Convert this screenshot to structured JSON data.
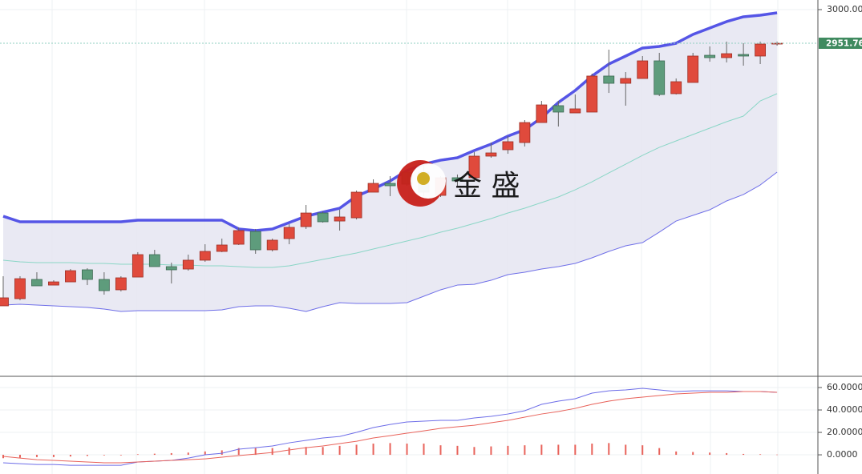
{
  "chart_data": [
    {
      "type": "candlestick",
      "open": [
        2575.0,
        2585.3,
        2612.9,
        2604.8,
        2609.4,
        2626.7,
        2612.9,
        2598.0,
        2616.3,
        2648.5,
        2631.3,
        2627.8,
        2640.5,
        2653.1,
        2663.4,
        2681.8,
        2655.4,
        2671.5,
        2688.7,
        2708.2,
        2696.7,
        2701.3,
        2738.1,
        2750.7,
        2766.8,
        2766.8,
        2733.5,
        2758.8,
        2758.8,
        2789.8,
        2799.0,
        2809.3,
        2838.0,
        2862.2,
        2851.8,
        2853.0,
        2904.7,
        2894.3,
        2901.2,
        2926.5,
        2879.4,
        2895.5,
        2934.5,
        2931.1,
        2935.7,
        2933.4,
        2950.6
      ],
      "high": [
        2617.5,
        2617.5,
        2623.2,
        2611.7,
        2627.8,
        2629.0,
        2623.2,
        2617.5,
        2652.0,
        2655.4,
        2637.0,
        2648.5,
        2663.4,
        2671.5,
        2687.6,
        2685.3,
        2671.5,
        2692.1,
        2719.7,
        2710.5,
        2712.8,
        2740.4,
        2756.5,
        2761.1,
        2768.0,
        2778.3,
        2761.1,
        2763.4,
        2795.5,
        2809.3,
        2818.5,
        2841.5,
        2869.0,
        2869.0,
        2878.2,
        2908.1,
        2942.6,
        2910.4,
        2933.4,
        2938.0,
        2901.2,
        2938.0,
        2947.2,
        2954.1,
        2951.8,
        2954.1,
        2954.1
      ],
      "low": [
        2575.0,
        2583.0,
        2603.7,
        2604.8,
        2609.4,
        2604.8,
        2591.1,
        2595.7,
        2616.3,
        2631.3,
        2607.1,
        2625.5,
        2638.2,
        2652.0,
        2662.3,
        2649.7,
        2653.1,
        2663.4,
        2685.3,
        2694.4,
        2683.0,
        2699.0,
        2738.1,
        2732.4,
        2747.3,
        2732.4,
        2731.2,
        2747.3,
        2756.5,
        2787.5,
        2793.2,
        2803.6,
        2838.0,
        2832.3,
        2851.8,
        2853.0,
        2880.5,
        2862.2,
        2901.2,
        2875.9,
        2878.2,
        2895.5,
        2925.3,
        2924.2,
        2919.6,
        2921.9,
        2948.3
      ],
      "close": [
        2586.5,
        2614.0,
        2603.7,
        2609.4,
        2625.5,
        2612.9,
        2596.8,
        2615.2,
        2648.5,
        2631.3,
        2626.7,
        2640.5,
        2653.1,
        2662.3,
        2683.0,
        2655.4,
        2669.2,
        2687.6,
        2708.2,
        2695.6,
        2702.5,
        2738.1,
        2750.7,
        2747.3,
        2749.5,
        2738.1,
        2758.8,
        2754.2,
        2789.8,
        2794.4,
        2810.5,
        2838.0,
        2863.3,
        2853.0,
        2857.6,
        2904.7,
        2894.3,
        2901.2,
        2926.5,
        2878.2,
        2896.6,
        2933.4,
        2931.1,
        2936.8,
        2933.4,
        2950.6,
        2951.76
      ],
      "up_color": "#e04a3c",
      "down_color": "#5e9c7c",
      "series": [
        {
          "color": "#5555e6",
          "values": [
            2703.6,
            2695.6,
            2695.6,
            2695.6,
            2695.6,
            2695.6,
            2695.6,
            2695.6,
            2697.9,
            2697.9,
            2697.9,
            2697.9,
            2697.9,
            2697.9,
            2685.3,
            2683.0,
            2685.3,
            2694.4,
            2703.6,
            2709.4,
            2715.1,
            2732.4,
            2742.7,
            2754.2,
            2769.1,
            2778.3,
            2784.0,
            2787.5,
            2797.8,
            2807.0,
            2818.5,
            2827.7,
            2844.9,
            2866.8,
            2884.0,
            2904.7,
            2921.9,
            2933.4,
            2944.9,
            2947.2,
            2951.8,
            2964.4,
            2973.6,
            2982.8,
            2989.7,
            2992.0,
            2995.4
          ]
        },
        {
          "color": "#8ad6c6",
          "values": [
            2640.5,
            2638.2,
            2637.0,
            2637.0,
            2637.0,
            2635.9,
            2635.9,
            2634.7,
            2634.7,
            2634.7,
            2633.6,
            2633.6,
            2632.4,
            2632.4,
            2631.3,
            2630.1,
            2630.1,
            2632.4,
            2637.0,
            2641.6,
            2646.2,
            2650.8,
            2656.5,
            2662.3,
            2668.0,
            2673.8,
            2680.7,
            2686.4,
            2693.3,
            2700.2,
            2708.2,
            2715.1,
            2723.2,
            2731.2,
            2741.5,
            2753.0,
            2765.7,
            2778.3,
            2790.9,
            2802.4,
            2811.6,
            2820.8,
            2830.0,
            2839.2,
            2847.2,
            2869.0,
            2879.4
          ]
        },
        {
          "color": "#6f6fe8",
          "values": [
            2576.1,
            2577.3,
            2576.1,
            2575.0,
            2573.8,
            2572.7,
            2570.4,
            2566.9,
            2568.1,
            2568.1,
            2568.1,
            2568.1,
            2568.1,
            2569.2,
            2573.8,
            2575.0,
            2575.0,
            2571.5,
            2566.9,
            2573.8,
            2579.6,
            2578.4,
            2578.4,
            2578.4,
            2579.6,
            2588.8,
            2598.0,
            2604.8,
            2605.9,
            2611.7,
            2619.8,
            2623.2,
            2627.8,
            2631.3,
            2635.9,
            2643.9,
            2653.1,
            2661.1,
            2665.7,
            2680.7,
            2696.7,
            2704.8,
            2712.8,
            2725.5,
            2734.7,
            2748.4,
            2766.8
          ]
        }
      ],
      "band_fill": "#e5e5f1",
      "ylim": [
        2473.9,
        3013.8
      ],
      "yticks": [
        {
          "value": 3000,
          "label": "3000.00"
        }
      ],
      "last_color": "#3f8a5f",
      "watermark": "金 盛"
    },
    {
      "type": "line",
      "series": [
        {
          "color": "#6d6de8",
          "values": [
            -7.1,
            -7.9,
            -8.6,
            -8.6,
            -9.3,
            -9.3,
            -9.3,
            -9.3,
            -6.4,
            -5.7,
            -5.0,
            -2.9,
            0,
            1.4,
            5.0,
            6.4,
            7.9,
            10.7,
            12.9,
            15.0,
            16.4,
            20.0,
            24.3,
            27.1,
            29.3,
            30.0,
            30.7,
            30.7,
            32.9,
            34.3,
            36.4,
            39.3,
            45.0,
            47.9,
            50.0,
            55.0,
            57.1,
            57.9,
            59.3,
            57.9,
            56.4,
            57.1,
            57.1,
            57.1,
            56.4,
            56.4,
            55.7
          ]
        },
        {
          "color": "#e8625a",
          "values": [
            -1.4,
            -2.9,
            -4.3,
            -5.0,
            -5.7,
            -6.4,
            -7.1,
            -7.1,
            -6.4,
            -5.7,
            -5.0,
            -4.3,
            -3.6,
            -2.1,
            -0.7,
            0.7,
            2.1,
            4.3,
            6.4,
            7.9,
            10.0,
            12.1,
            15.0,
            17.1,
            19.3,
            21.4,
            23.6,
            25.0,
            26.4,
            28.6,
            30.7,
            33.6,
            36.4,
            38.6,
            41.4,
            45.0,
            47.9,
            50.0,
            51.4,
            52.9,
            54.3,
            55.0,
            55.7,
            55.7,
            56.4,
            56.4,
            55.7
          ]
        }
      ],
      "bars": {
        "color": "#e8625a",
        "values": [
          -3,
          -2.5,
          -2,
          -2,
          -1.5,
          -1,
          -0.5,
          -0.5,
          0.5,
          1,
          1.5,
          2,
          3,
          4,
          6,
          6,
          6,
          6.5,
          7,
          7,
          8,
          9,
          10,
          10.5,
          10,
          10,
          8.5,
          8,
          7,
          7.5,
          8,
          8.5,
          9,
          9,
          9,
          10,
          10.5,
          9,
          8.5,
          6,
          3,
          2.5,
          2,
          1.5,
          0.8,
          0.5,
          0.2
        ]
      },
      "ylim": [
        -17.1,
        70
      ],
      "yticks": [
        {
          "value": 60,
          "label": "60.0000"
        },
        {
          "value": 40,
          "label": "40.0000"
        },
        {
          "value": 20,
          "label": "20.0000"
        },
        {
          "value": 0,
          "label": "0.0000"
        }
      ]
    }
  ]
}
